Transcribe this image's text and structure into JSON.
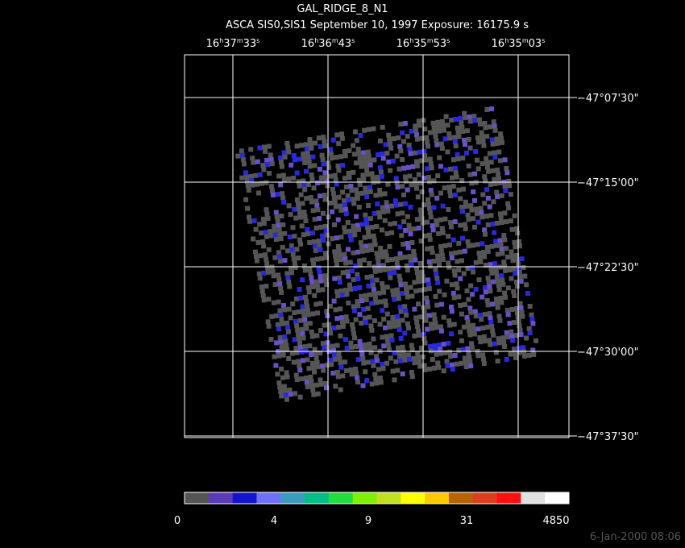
{
  "header": {
    "title": "GAL_RIDGE_8_N1",
    "subtitle": "ASCA SIS0,SIS1 September 10, 1997 Exposure: 16175.9 s"
  },
  "ra_units": [
    "h",
    "m",
    "s"
  ],
  "ra_labels": [
    [
      "16",
      "37",
      "33"
    ],
    [
      "16",
      "36",
      "43"
    ],
    [
      "16",
      "35",
      "53"
    ],
    [
      "16",
      "35",
      "03"
    ]
  ],
  "dec_labels": [
    "−47°07'30\"",
    "−47°15'00\"",
    "−47°22'30\"",
    "−47°30'00\"",
    "−47°37'30\""
  ],
  "colorbar": {
    "colors": [
      "#555555",
      "#5a3cb8",
      "#1414d0",
      "#7070ff",
      "#3c9cc0",
      "#00c088",
      "#20e040",
      "#80f000",
      "#c0e020",
      "#ffff00",
      "#ffc800",
      "#b86400",
      "#e03c20",
      "#ff1010",
      "#e0e0e0",
      "#ffffff"
    ],
    "labels": [
      "0",
      "4",
      "9",
      "31",
      "4850"
    ]
  },
  "timestamp": "6-Jan-2000 08:06"
}
